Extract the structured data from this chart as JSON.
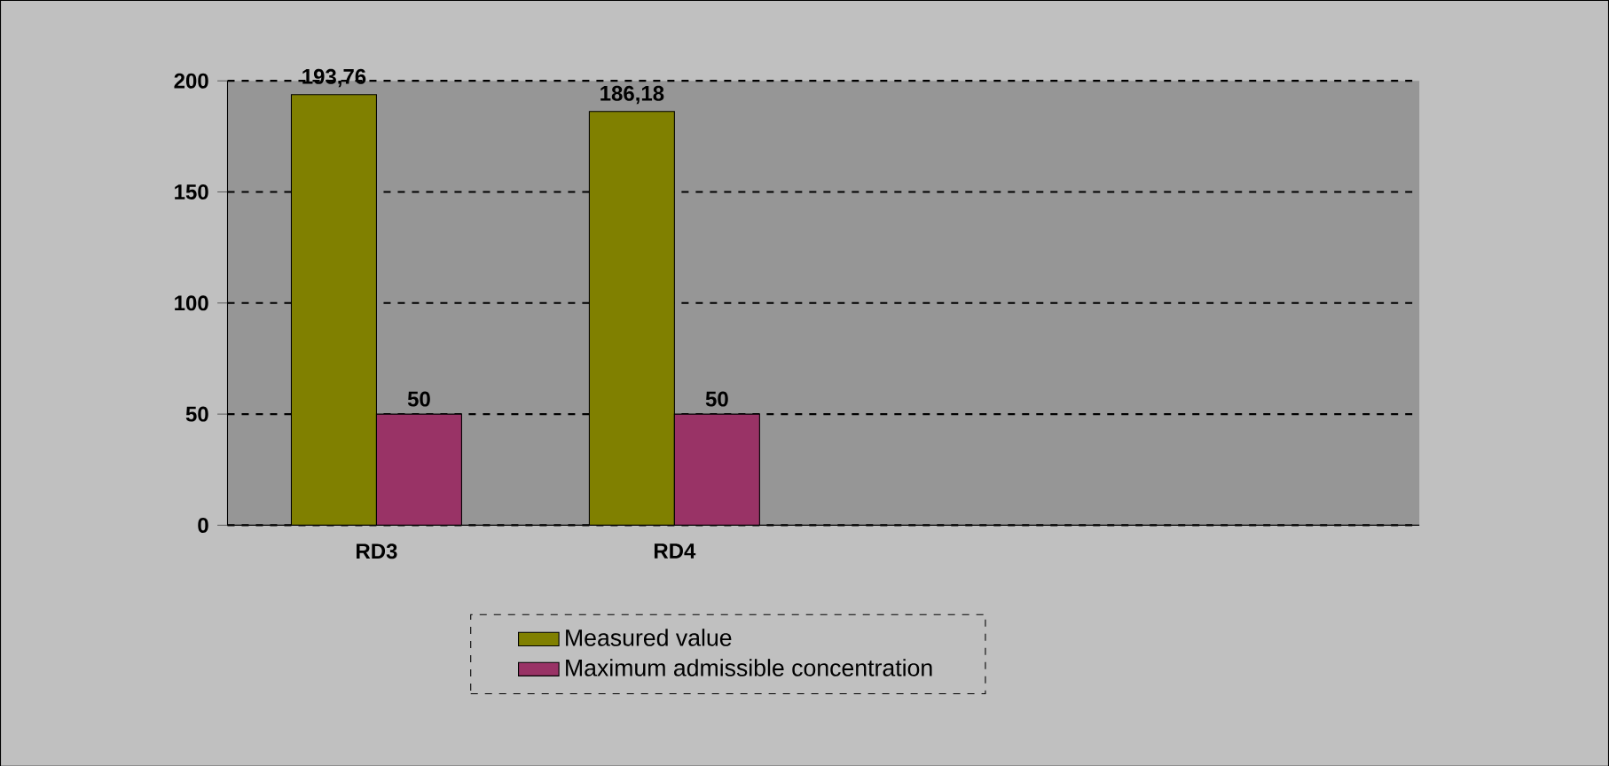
{
  "chart_data": {
    "type": "bar",
    "categories": [
      "RD3",
      "RD4",
      null,
      null
    ],
    "series": [
      {
        "name": "Measured value",
        "color": "#808000",
        "values": [
          193.76,
          186.18,
          null,
          null
        ],
        "value_labels": [
          "193,76",
          "186,18",
          null,
          null
        ]
      },
      {
        "name": "Maximum admissible concentration",
        "color": "#993366",
        "values": [
          50,
          50,
          null,
          null
        ],
        "value_labels": [
          "50",
          "50",
          null,
          null
        ]
      }
    ],
    "ylim": [
      0,
      200
    ],
    "yticks": [
      0,
      50,
      100,
      150,
      200
    ],
    "grid": "y",
    "legend": "bottom"
  }
}
